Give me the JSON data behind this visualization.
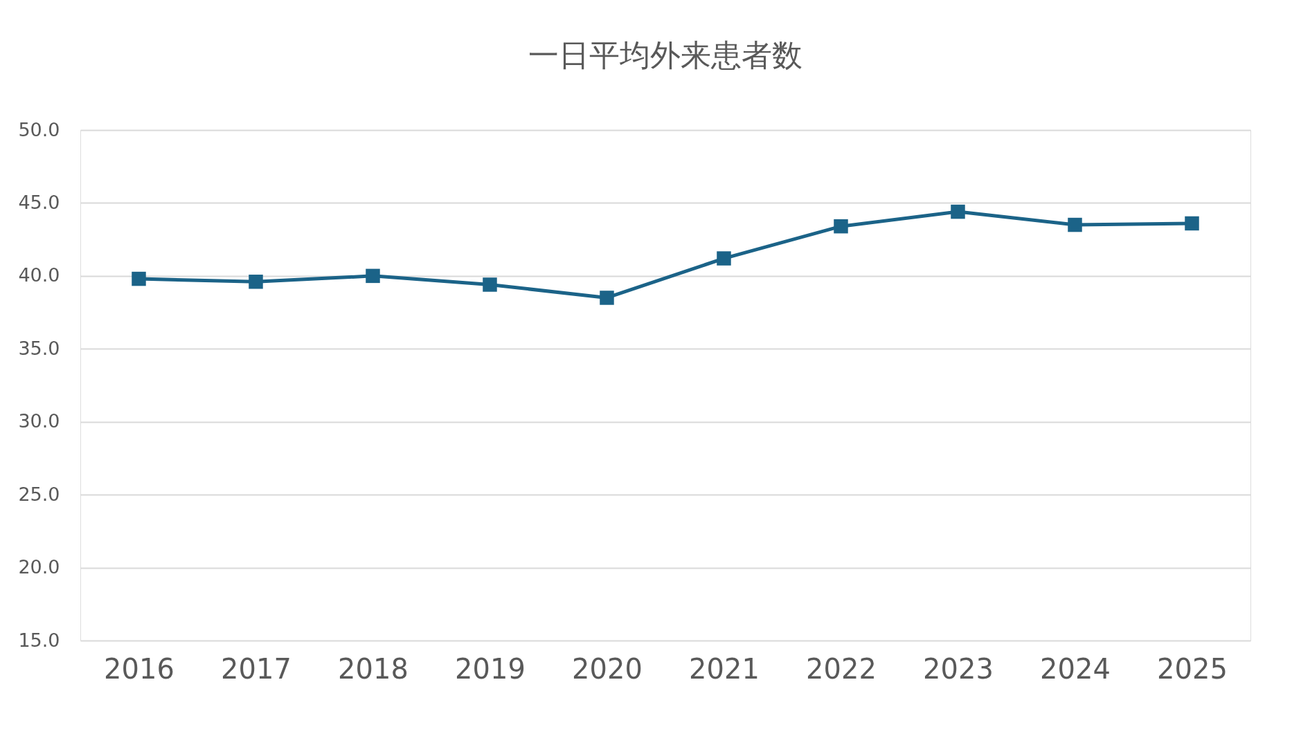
{
  "chart_data": {
    "type": "line",
    "title": "一日平均外来患者数",
    "categories": [
      "2016",
      "2017",
      "2018",
      "2019",
      "2020",
      "2021",
      "2022",
      "2023",
      "2024",
      "2025"
    ],
    "series": [
      {
        "color": "#1b6388",
        "values": [
          39.8,
          39.6,
          40.0,
          39.4,
          38.5,
          41.2,
          43.4,
          44.4,
          43.5,
          43.6
        ]
      }
    ],
    "ylim": [
      15,
      50
    ],
    "yticks": [
      {
        "value": 15,
        "label": "15.0"
      },
      {
        "value": 20,
        "label": "20.0"
      },
      {
        "value": 25,
        "label": "25.0"
      },
      {
        "value": 30,
        "label": "30.0"
      },
      {
        "value": 35,
        "label": "35.0"
      },
      {
        "value": 40,
        "label": "40.0"
      },
      {
        "value": 45,
        "label": "45.0"
      },
      {
        "value": 50,
        "label": "50.0"
      }
    ],
    "grid": "y",
    "marker": "square",
    "line_style": "solid",
    "legend": false
  }
}
